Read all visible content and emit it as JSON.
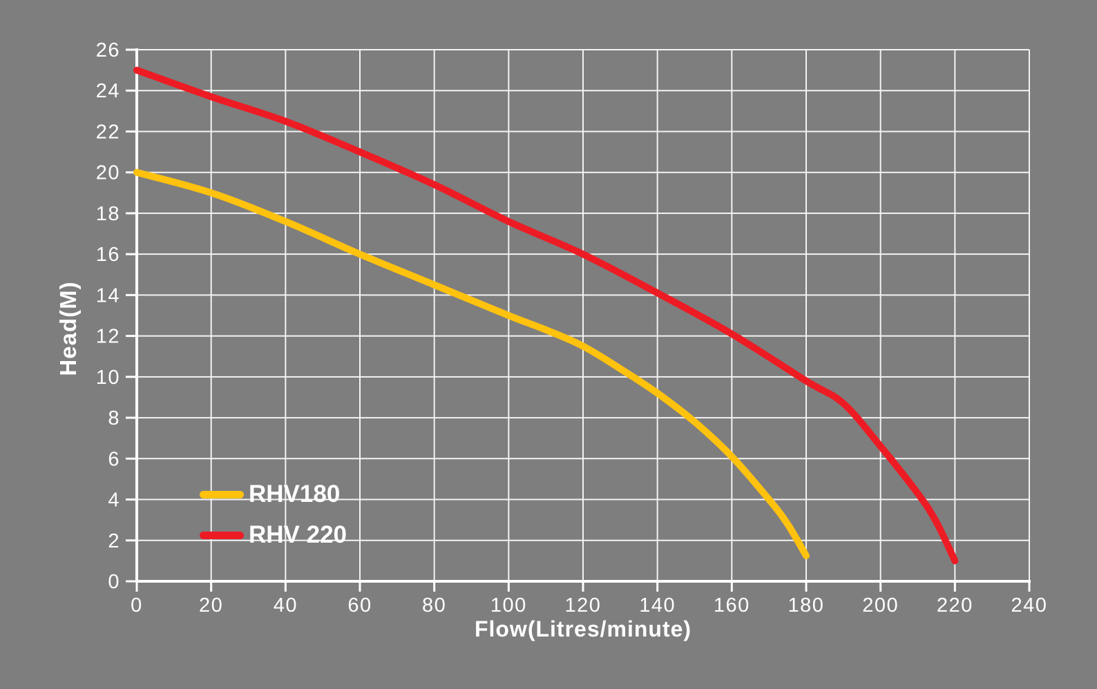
{
  "chart_data": {
    "type": "line",
    "title": "",
    "xlabel": "Flow(Litres/minute)",
    "ylabel": "Head(M)",
    "xlim": [
      0,
      240
    ],
    "ylim": [
      0,
      26
    ],
    "xticks": [
      0,
      20,
      40,
      60,
      80,
      100,
      120,
      140,
      160,
      180,
      200,
      220,
      240
    ],
    "yticks": [
      0,
      2,
      4,
      6,
      8,
      10,
      12,
      14,
      16,
      18,
      20,
      22,
      24,
      26
    ],
    "grid": true,
    "legend_position": "inside-bottom-left",
    "colors": {
      "background": "#7e7e7e",
      "grid": "#f4f4f4",
      "axis": "#ffffff",
      "text": "#ffffff"
    },
    "series": [
      {
        "name": "RHV180",
        "color": "#FFC20E",
        "points": [
          [
            0,
            20
          ],
          [
            20,
            19
          ],
          [
            40,
            17.6
          ],
          [
            60,
            16
          ],
          [
            80,
            14.5
          ],
          [
            100,
            13
          ],
          [
            110,
            12.3
          ],
          [
            120,
            11.5
          ],
          [
            130,
            10.4
          ],
          [
            140,
            9.2
          ],
          [
            150,
            7.8
          ],
          [
            160,
            6.1
          ],
          [
            170,
            4.0
          ],
          [
            175,
            2.8
          ],
          [
            180,
            1.25
          ]
        ]
      },
      {
        "name": "RHV 220",
        "color": "#ED1C24",
        "points": [
          [
            0,
            25
          ],
          [
            20,
            23.7
          ],
          [
            40,
            22.5
          ],
          [
            60,
            21
          ],
          [
            80,
            19.4
          ],
          [
            100,
            17.6
          ],
          [
            120,
            16
          ],
          [
            140,
            14.1
          ],
          [
            160,
            12.1
          ],
          [
            180,
            9.8
          ],
          [
            190,
            8.7
          ],
          [
            200,
            6.6
          ],
          [
            210,
            4.3
          ],
          [
            215,
            2.9
          ],
          [
            220,
            1.0
          ]
        ]
      }
    ]
  }
}
